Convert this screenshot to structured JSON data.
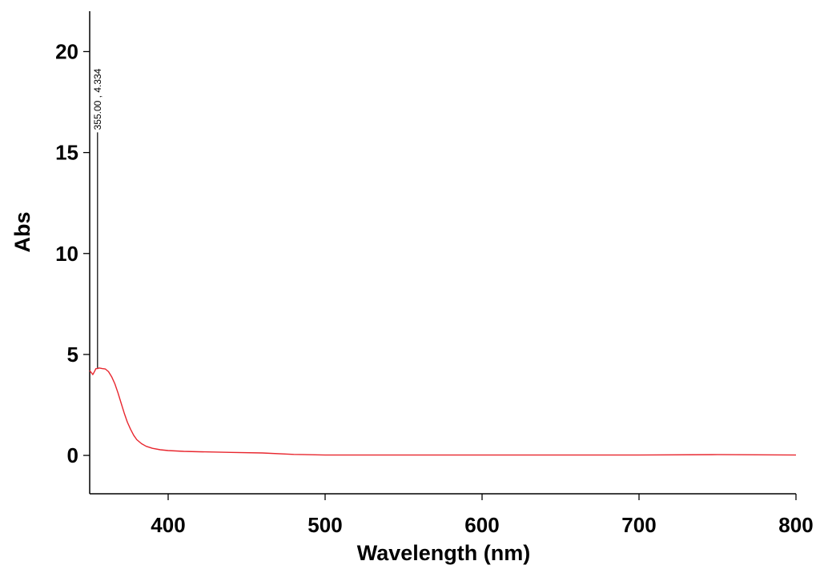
{
  "chart_data": {
    "type": "line",
    "title": "",
    "xlabel": "Wavelength (nm)",
    "ylabel": "Abs",
    "xlim": [
      350,
      800
    ],
    "ylim": [
      -1.9,
      22
    ],
    "xticks": [
      400,
      500,
      600,
      700,
      800
    ],
    "yticks": [
      0,
      5,
      10,
      15,
      20
    ],
    "xtick_labels": [
      "400",
      "500",
      "600",
      "700",
      "800"
    ],
    "ytick_labels": [
      "0",
      "5",
      "10",
      "15",
      "20"
    ],
    "grid": false,
    "legend": "none",
    "series": [
      {
        "color": "#e8262e",
        "x": [
          350,
          351,
          352,
          353,
          354,
          355,
          356,
          358,
          360,
          362,
          364,
          366,
          368,
          370,
          372,
          374,
          376,
          378,
          380,
          383,
          386,
          390,
          395,
          400,
          410,
          420,
          440,
          460,
          480,
          500,
          550,
          600,
          650,
          700,
          750,
          800
        ],
        "y": [
          4.2,
          4.1,
          4.0,
          4.15,
          4.3,
          4.3,
          4.33,
          4.3,
          4.28,
          4.15,
          3.9,
          3.55,
          3.1,
          2.6,
          2.1,
          1.65,
          1.3,
          1.0,
          0.78,
          0.58,
          0.45,
          0.35,
          0.28,
          0.24,
          0.2,
          0.18,
          0.15,
          0.12,
          0.05,
          0.02,
          0.02,
          0.02,
          0.02,
          0.02,
          0.04,
          0.02
        ]
      }
    ],
    "annotations": [
      {
        "text": "355.00 , 4.334",
        "x": 355,
        "y_top": 16,
        "y_bottom": 4.334
      }
    ]
  }
}
